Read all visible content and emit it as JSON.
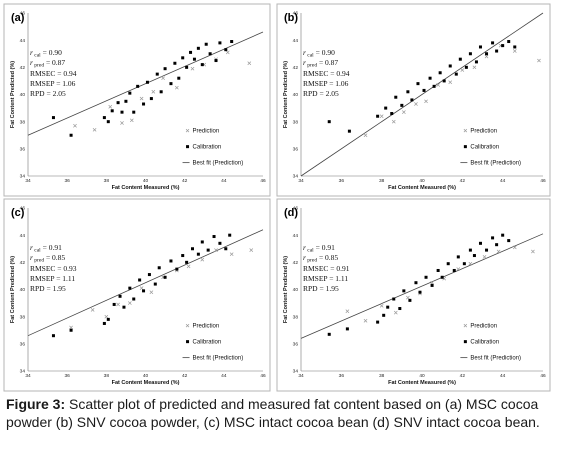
{
  "caption": {
    "label": "Figure 3:",
    "text": " Scatter plot of predicted and measured fat content based on (a) MSC cocoa powder (b) SNV cocoa powder, (c) MSC intact cocoa bean (d) SNV intact cocoa bean."
  },
  "colors": {
    "calibration": "#000000",
    "prediction": "#999999",
    "bestfit": "#444444",
    "frame": "#b5b5b5"
  },
  "chart_data": [
    {
      "type": "scatter",
      "panel": "(a)",
      "xlabel": "Fat Content Measured (%)",
      "ylabel": "Fat Content Predicted (%)",
      "xlim": [
        34,
        46
      ],
      "ylim": [
        34,
        46
      ],
      "xticks": [
        "34",
        "36",
        "38",
        "40",
        "42",
        "44",
        "46"
      ],
      "yticks": [
        "34",
        "36",
        "38",
        "40",
        "42",
        "44",
        "46"
      ],
      "stats": {
        "r_cal_sym": "r",
        "r_cal_sub": "cal",
        "r_cal": "0.90",
        "r_pred_sym": "r",
        "r_pred_sub": "pred",
        "r_pred": "0.87",
        "rmsec": "RMSEC = 0.94",
        "rmsep": "RMSEP = 1.06",
        "rpd": "RPD = 2.05"
      },
      "legend": [
        "Prediction",
        "Calibration",
        "Best fit (Prediction)"
      ],
      "series": [
        {
          "name": "Prediction",
          "marker": "x",
          "points": [
            [
              36.4,
              37.7
            ],
            [
              37.4,
              37.4
            ],
            [
              38.2,
              39.1
            ],
            [
              38.8,
              37.9
            ],
            [
              39.3,
              38.1
            ],
            [
              39.8,
              39.7
            ],
            [
              40.4,
              40.2
            ],
            [
              40.9,
              41.2
            ],
            [
              41.6,
              40.5
            ],
            [
              42.4,
              41.9
            ],
            [
              43.0,
              42.2
            ],
            [
              43.6,
              42.6
            ],
            [
              44.2,
              43.1
            ],
            [
              45.3,
              42.3
            ]
          ]
        },
        {
          "name": "Calibration",
          "marker": "square",
          "points": [
            [
              35.3,
              38.3
            ],
            [
              36.2,
              37.0
            ],
            [
              37.9,
              38.3
            ],
            [
              38.1,
              38.0
            ],
            [
              38.3,
              38.8
            ],
            [
              38.6,
              39.4
            ],
            [
              38.8,
              38.7
            ],
            [
              39.0,
              39.5
            ],
            [
              39.2,
              40.1
            ],
            [
              39.4,
              38.7
            ],
            [
              39.6,
              40.6
            ],
            [
              39.9,
              39.3
            ],
            [
              40.1,
              40.9
            ],
            [
              40.3,
              39.7
            ],
            [
              40.6,
              41.5
            ],
            [
              40.8,
              40.2
            ],
            [
              41.0,
              41.9
            ],
            [
              41.3,
              40.8
            ],
            [
              41.5,
              42.3
            ],
            [
              41.7,
              41.2
            ],
            [
              41.9,
              42.7
            ],
            [
              42.1,
              42.0
            ],
            [
              42.3,
              43.1
            ],
            [
              42.5,
              42.6
            ],
            [
              42.7,
              43.4
            ],
            [
              42.9,
              42.2
            ],
            [
              43.1,
              43.7
            ],
            [
              43.3,
              43.0
            ],
            [
              43.6,
              42.5
            ],
            [
              43.8,
              43.8
            ],
            [
              44.1,
              43.3
            ],
            [
              44.4,
              43.9
            ]
          ]
        }
      ],
      "bestfit": {
        "from": [
          34,
          37.0
        ],
        "to": [
          46,
          44.6
        ]
      }
    },
    {
      "type": "scatter",
      "panel": "(b)",
      "xlabel": "Fat Content Measured (%)",
      "ylabel": "Fat Content Predicted (%)",
      "xlim": [
        34,
        46
      ],
      "ylim": [
        34,
        46
      ],
      "xticks": [
        "34",
        "36",
        "38",
        "40",
        "42",
        "44",
        "46"
      ],
      "yticks": [
        "34",
        "36",
        "38",
        "40",
        "42",
        "44",
        "46"
      ],
      "stats": {
        "r_cal_sym": "r",
        "r_cal_sub": "cal",
        "r_cal": "0.90",
        "r_pred_sym": "r",
        "r_pred_sub": "pred",
        "r_pred": "0.87",
        "rmsec": "RMSEC = 0.94",
        "rmsep": "RMSEP = 1.06",
        "rpd": "RPD = 2.05"
      },
      "legend": [
        "Prediction",
        "Calibration",
        "Best fit (Prediction)"
      ],
      "series": [
        {
          "name": "Prediction",
          "marker": "x",
          "points": [
            [
              37.2,
              37.0
            ],
            [
              38.0,
              38.4
            ],
            [
              38.6,
              38.0
            ],
            [
              39.1,
              38.7
            ],
            [
              39.7,
              39.3
            ],
            [
              40.2,
              39.5
            ],
            [
              40.8,
              40.7
            ],
            [
              41.4,
              40.9
            ],
            [
              42.0,
              41.8
            ],
            [
              42.6,
              42.0
            ],
            [
              43.2,
              42.8
            ],
            [
              43.9,
              43.6
            ],
            [
              44.6,
              43.2
            ],
            [
              45.8,
              42.5
            ]
          ]
        },
        {
          "name": "Calibration",
          "marker": "square",
          "points": [
            [
              35.4,
              38.0
            ],
            [
              36.4,
              37.3
            ],
            [
              37.8,
              38.4
            ],
            [
              38.2,
              39.0
            ],
            [
              38.5,
              38.6
            ],
            [
              38.7,
              39.8
            ],
            [
              39.0,
              39.2
            ],
            [
              39.3,
              40.2
            ],
            [
              39.5,
              39.6
            ],
            [
              39.8,
              40.8
            ],
            [
              40.1,
              40.3
            ],
            [
              40.4,
              41.2
            ],
            [
              40.6,
              40.6
            ],
            [
              40.9,
              41.6
            ],
            [
              41.1,
              41.0
            ],
            [
              41.4,
              42.1
            ],
            [
              41.7,
              41.5
            ],
            [
              41.9,
              42.6
            ],
            [
              42.2,
              42.0
            ],
            [
              42.4,
              43.0
            ],
            [
              42.7,
              42.4
            ],
            [
              42.9,
              43.5
            ],
            [
              43.2,
              43.0
            ],
            [
              43.5,
              43.8
            ],
            [
              43.7,
              43.2
            ],
            [
              44.0,
              43.6
            ],
            [
              44.3,
              43.9
            ],
            [
              44.6,
              43.5
            ]
          ]
        }
      ],
      "bestfit": {
        "from": [
          34,
          34.0
        ],
        "to": [
          46,
          46.0
        ]
      }
    },
    {
      "type": "scatter",
      "panel": "(c)",
      "xlabel": "Fat Content Measured (%)",
      "ylabel": "Fat Content Predicted (%)",
      "xlim": [
        34,
        46
      ],
      "ylim": [
        34,
        46
      ],
      "xticks": [
        "34",
        "36",
        "38",
        "40",
        "42",
        "44",
        "46"
      ],
      "yticks": [
        "34",
        "36",
        "38",
        "40",
        "42",
        "44",
        "46"
      ],
      "stats": {
        "r_cal_sym": "r",
        "r_cal_sub": "cal",
        "r_cal": "0.91",
        "r_pred_sym": "r",
        "r_pred_sub": "pred",
        "r_pred": "0.85",
        "rmsec": "RMSEC = 0.93",
        "rmsep": "RMSEP = 1.11",
        "rpd": "RPD = 1.95"
      },
      "legend": [
        "Prediction",
        "Calibration",
        "Best fit (Prediction)"
      ],
      "series": [
        {
          "name": "Prediction",
          "marker": "x",
          "points": [
            [
              36.2,
              37.2
            ],
            [
              37.3,
              38.5
            ],
            [
              38.0,
              38.0
            ],
            [
              38.6,
              38.9
            ],
            [
              39.2,
              39.0
            ],
            [
              39.8,
              40.1
            ],
            [
              40.3,
              39.8
            ],
            [
              40.9,
              40.9
            ],
            [
              41.6,
              41.4
            ],
            [
              42.2,
              41.7
            ],
            [
              42.9,
              42.2
            ],
            [
              43.6,
              42.9
            ],
            [
              44.4,
              42.6
            ],
            [
              45.4,
              42.9
            ]
          ]
        },
        {
          "name": "Calibration",
          "marker": "square",
          "points": [
            [
              35.3,
              36.6
            ],
            [
              36.2,
              37.0
            ],
            [
              37.9,
              37.5
            ],
            [
              38.1,
              37.8
            ],
            [
              38.4,
              38.9
            ],
            [
              38.7,
              39.5
            ],
            [
              38.9,
              38.7
            ],
            [
              39.2,
              40.1
            ],
            [
              39.4,
              39.3
            ],
            [
              39.7,
              40.7
            ],
            [
              39.9,
              39.9
            ],
            [
              40.2,
              41.1
            ],
            [
              40.5,
              40.4
            ],
            [
              40.7,
              41.6
            ],
            [
              41.0,
              40.9
            ],
            [
              41.3,
              42.1
            ],
            [
              41.6,
              41.5
            ],
            [
              41.9,
              42.5
            ],
            [
              42.1,
              42.0
            ],
            [
              42.4,
              43.0
            ],
            [
              42.7,
              42.6
            ],
            [
              42.9,
              43.5
            ],
            [
              43.2,
              42.9
            ],
            [
              43.5,
              43.9
            ],
            [
              43.8,
              43.4
            ],
            [
              44.1,
              43.0
            ],
            [
              44.3,
              44.0
            ]
          ]
        }
      ],
      "bestfit": {
        "from": [
          34,
          36.6
        ],
        "to": [
          46,
          44.4
        ]
      }
    },
    {
      "type": "scatter",
      "panel": "(d)",
      "xlabel": "Fat Content Measured (%)",
      "ylabel": "Fat Content Predicted (%)",
      "xlim": [
        34,
        46
      ],
      "ylim": [
        34,
        46
      ],
      "xticks": [
        "34",
        "36",
        "38",
        "40",
        "42",
        "44",
        "46"
      ],
      "yticks": [
        "34",
        "36",
        "38",
        "40",
        "42",
        "44",
        "46"
      ],
      "stats": {
        "r_cal_sym": "r",
        "r_cal_sub": "cal",
        "r_cal": "0.91",
        "r_pred_sym": "r",
        "r_pred_sub": "pred",
        "r_pred": "0.85",
        "rmsec": "RMSEC = 0.91",
        "rmsep": "RMSEP = 1.11",
        "rpd": "RPD = 1.95"
      },
      "legend": [
        "Prediction",
        "Calibration",
        "Best fit (Prediction)"
      ],
      "series": [
        {
          "name": "Prediction",
          "marker": "x",
          "points": [
            [
              36.3,
              38.4
            ],
            [
              37.2,
              37.7
            ],
            [
              38.0,
              38.8
            ],
            [
              38.7,
              38.3
            ],
            [
              39.3,
              39.4
            ],
            [
              39.9,
              39.7
            ],
            [
              40.5,
              40.5
            ],
            [
              41.1,
              40.8
            ],
            [
              41.8,
              41.5
            ],
            [
              42.4,
              41.9
            ],
            [
              43.1,
              42.4
            ],
            [
              43.8,
              42.8
            ],
            [
              44.6,
              43.1
            ],
            [
              45.5,
              42.8
            ]
          ]
        },
        {
          "name": "Calibration",
          "marker": "square",
          "points": [
            [
              35.4,
              36.7
            ],
            [
              36.3,
              37.1
            ],
            [
              37.8,
              37.6
            ],
            [
              38.1,
              38.1
            ],
            [
              38.3,
              38.7
            ],
            [
              38.6,
              39.3
            ],
            [
              38.9,
              38.6
            ],
            [
              39.1,
              39.9
            ],
            [
              39.4,
              39.2
            ],
            [
              39.7,
              40.5
            ],
            [
              39.9,
              39.8
            ],
            [
              40.2,
              40.9
            ],
            [
              40.5,
              40.3
            ],
            [
              40.8,
              41.4
            ],
            [
              41.0,
              40.9
            ],
            [
              41.3,
              41.9
            ],
            [
              41.6,
              41.4
            ],
            [
              41.8,
              42.4
            ],
            [
              42.1,
              41.9
            ],
            [
              42.4,
              42.9
            ],
            [
              42.6,
              42.5
            ],
            [
              42.9,
              43.4
            ],
            [
              43.2,
              42.9
            ],
            [
              43.5,
              43.8
            ],
            [
              43.7,
              43.3
            ],
            [
              44.0,
              44.0
            ],
            [
              44.3,
              43.6
            ]
          ]
        }
      ],
      "bestfit": {
        "from": [
          34,
          36.4
        ],
        "to": [
          46,
          44.1
        ]
      }
    }
  ]
}
